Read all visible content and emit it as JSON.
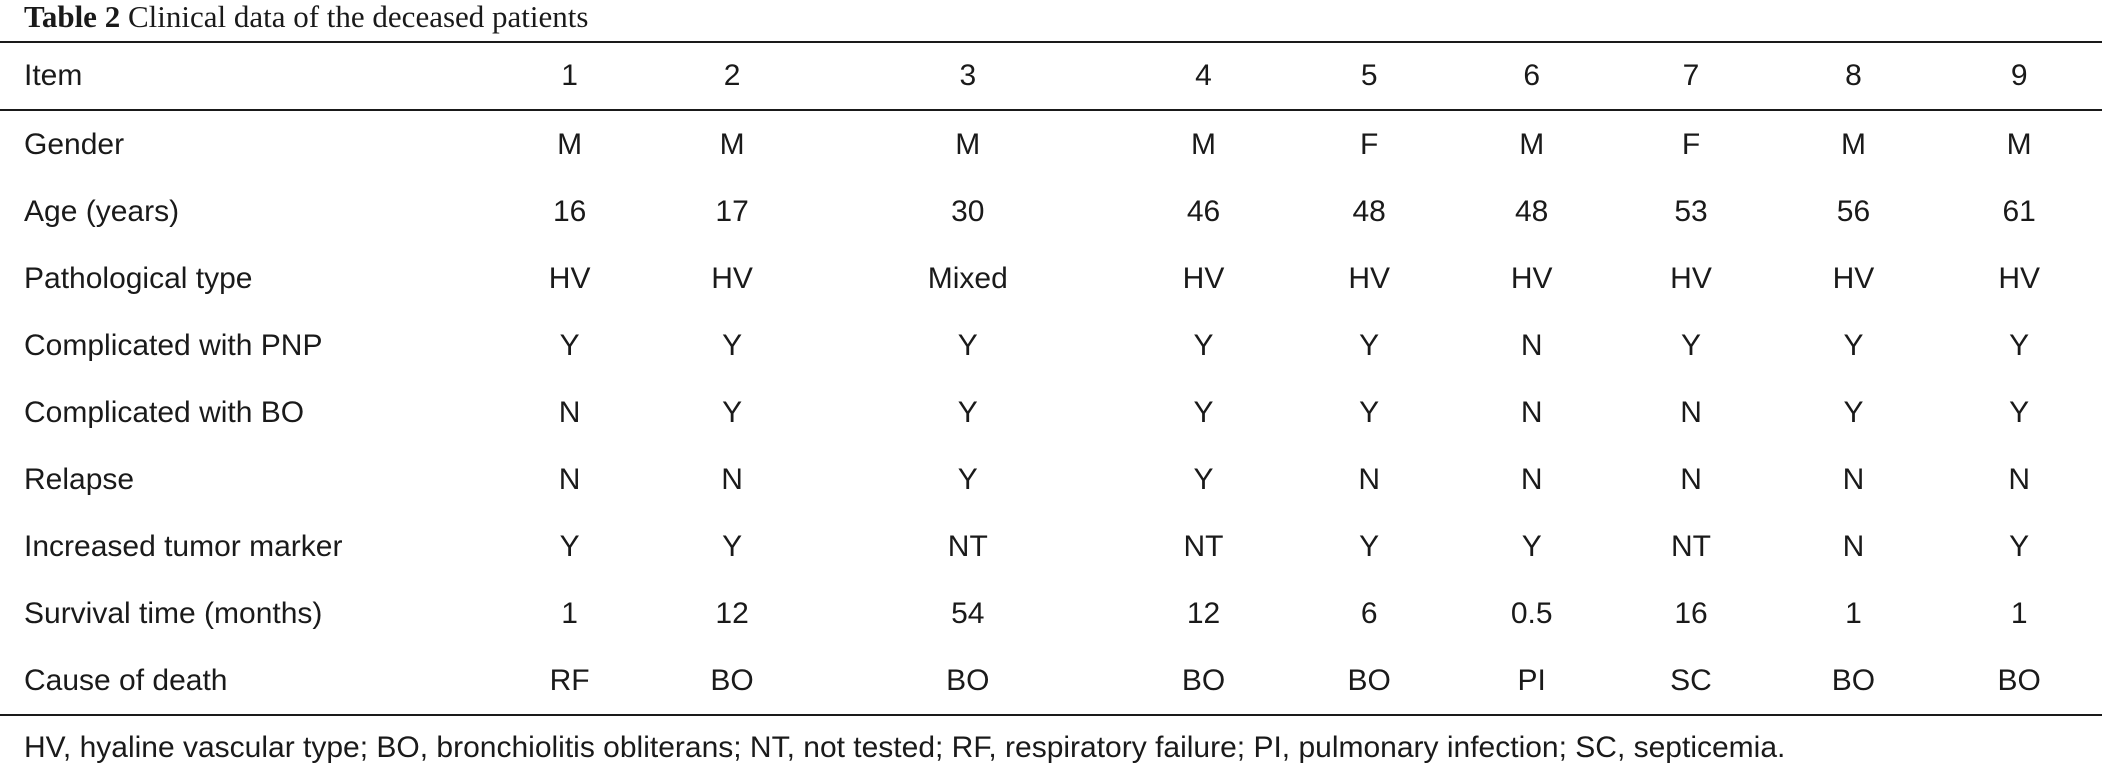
{
  "caption": {
    "label": "Table 2",
    "text": "Clinical data of the deceased patients"
  },
  "table": {
    "header": [
      "Item",
      "1",
      "2",
      "3",
      "4",
      "5",
      "6",
      "7",
      "8",
      "9"
    ],
    "rows": [
      [
        "Gender",
        "M",
        "M",
        "M",
        "M",
        "F",
        "M",
        "F",
        "M",
        "M"
      ],
      [
        "Age (years)",
        "16",
        "17",
        "30",
        "46",
        "48",
        "48",
        "53",
        "56",
        "61"
      ],
      [
        "Pathological type",
        "HV",
        "HV",
        "Mixed",
        "HV",
        "HV",
        "HV",
        "HV",
        "HV",
        "HV"
      ],
      [
        "Complicated with PNP",
        "Y",
        "Y",
        "Y",
        "Y",
        "Y",
        "N",
        "Y",
        "Y",
        "Y"
      ],
      [
        "Complicated with BO",
        "N",
        "Y",
        "Y",
        "Y",
        "Y",
        "N",
        "N",
        "Y",
        "Y"
      ],
      [
        "Relapse",
        "N",
        "N",
        "Y",
        "Y",
        "N",
        "N",
        "N",
        "N",
        "N"
      ],
      [
        "Increased tumor marker",
        "Y",
        "Y",
        "NT",
        "NT",
        "Y",
        "Y",
        "NT",
        "N",
        "Y"
      ],
      [
        "Survival time (months)",
        "1",
        "12",
        "54",
        "12",
        "6",
        "0.5",
        "16",
        "1",
        "1"
      ],
      [
        "Cause of death",
        "RF",
        "BO",
        "BO",
        "BO",
        "BO",
        "PI",
        "SC",
        "BO",
        "BO"
      ]
    ]
  },
  "footnote": "HV, hyaline vascular type; BO, bronchiolitis obliterans; NT, not tested; RF, respiratory failure; PI, pulmonary infection; SC, septicemia."
}
